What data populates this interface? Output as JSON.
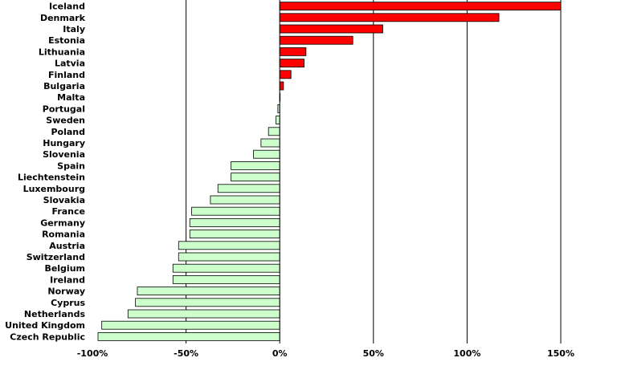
{
  "chart_data": {
    "type": "bar",
    "orientation": "horizontal",
    "title": "",
    "xlabel": "",
    "ylabel": "",
    "xlim": [
      -100,
      150
    ],
    "x_ticks": [
      -100,
      -50,
      0,
      50,
      100,
      150
    ],
    "x_tick_labels": [
      "-100%",
      "-50%",
      "0%",
      "50%",
      "100%",
      "150%"
    ],
    "grid": "vertical",
    "categories": [
      "Iceland",
      "Denmark",
      "Italy",
      "Estonia",
      "Lithuania",
      "Latvia",
      "Finland",
      "Bulgaria",
      "Malta",
      "Portugal",
      "Sweden",
      "Poland",
      "Hungary",
      "Slovenia",
      "Spain",
      "Liechtenstein",
      "Luxembourg",
      "Slovakia",
      "France",
      "Germany",
      "Romania",
      "Austria",
      "Switzerland",
      "Belgium",
      "Ireland",
      "Norway",
      "Cyprus",
      "Netherlands",
      "United Kingdom",
      "Czech Republic"
    ],
    "values": [
      150,
      117,
      55,
      39,
      14,
      13,
      6,
      2,
      0,
      -1,
      -2,
      -6,
      -10,
      -14,
      -26,
      -26,
      -33,
      -37,
      -47,
      -48,
      -48,
      -54,
      -54,
      -57,
      -57,
      -76,
      -77,
      -81,
      -95,
      -97
    ],
    "colors": {
      "positive": "#ff0000",
      "negative": "#ccffcc",
      "stroke": "#000000",
      "grid": "#000000"
    }
  }
}
